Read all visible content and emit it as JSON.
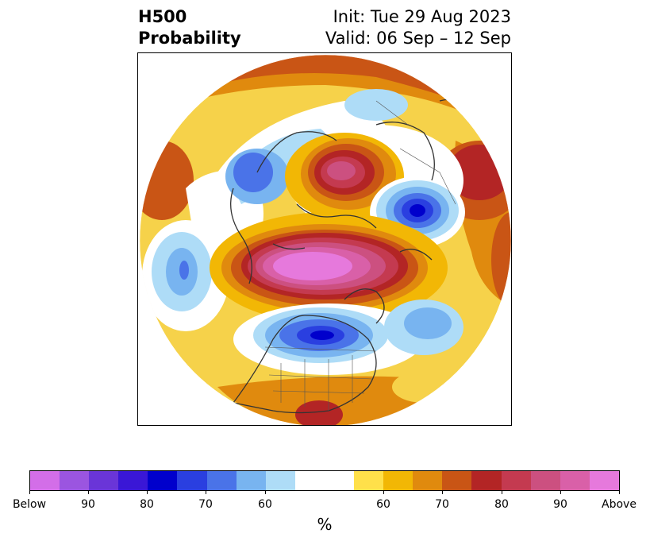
{
  "header": {
    "title_line1": "H500",
    "title_line2": "Probability",
    "init": "Init: Tue 29 Aug 2023",
    "valid": "Valid: 06 Sep – 12 Sep"
  },
  "colorbar": {
    "unit_label": "%",
    "tick_labels": [
      "Below",
      "90",
      "80",
      "70",
      "60",
      "60",
      "70",
      "80",
      "90",
      "Above"
    ],
    "colors": [
      "#d36ee8",
      "#9b55e0",
      "#6a35d8",
      "#3a17d6",
      "#0000cc",
      "#2a3fe0",
      "#4a73e8",
      "#78b4f0",
      "#aedcf7",
      "#ffffff",
      "#ffe04a",
      "#f2b705",
      "#e08a0e",
      "#c95515",
      "#b32525",
      "#c43a50",
      "#cc5080",
      "#d960a8",
      "#e679dc"
    ]
  },
  "map": {
    "projection": "north-polar-stereographic",
    "anomaly_regions": [
      "positive",
      "negative"
    ]
  }
}
